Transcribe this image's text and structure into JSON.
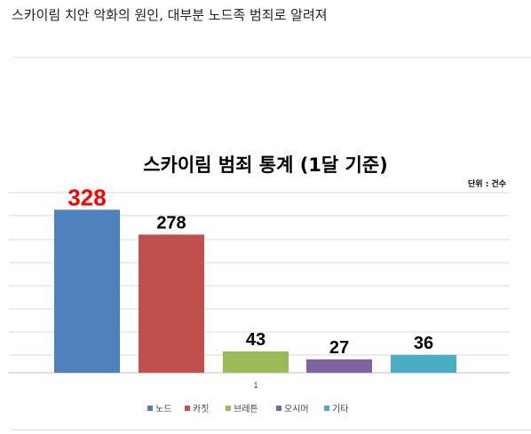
{
  "headline": "스카이림 치안 악화의 원인, 대부분 노드족 범죄로 알려져",
  "chart_data": {
    "type": "bar",
    "title": "스카이림 범죄 통계 (1달 기준)",
    "unit_label": "단위 : 건수",
    "categories": [
      "1"
    ],
    "series": [
      {
        "name": "노드",
        "values": [
          328
        ],
        "color": "#4f81bd"
      },
      {
        "name": "카짓",
        "values": [
          278
        ],
        "color": "#c0504d"
      },
      {
        "name": "브레튼",
        "values": [
          43
        ],
        "color": "#9bbb59"
      },
      {
        "name": "오시머",
        "values": [
          27
        ],
        "color": "#8064a2"
      },
      {
        "name": "기타",
        "values": [
          36
        ],
        "color": "#4bacc6"
      }
    ],
    "data_labels": [
      "328",
      "278",
      "43",
      "27",
      "36"
    ],
    "highlight_label_color": "#ff0000",
    "legend_position": "bottom",
    "grid": true
  }
}
